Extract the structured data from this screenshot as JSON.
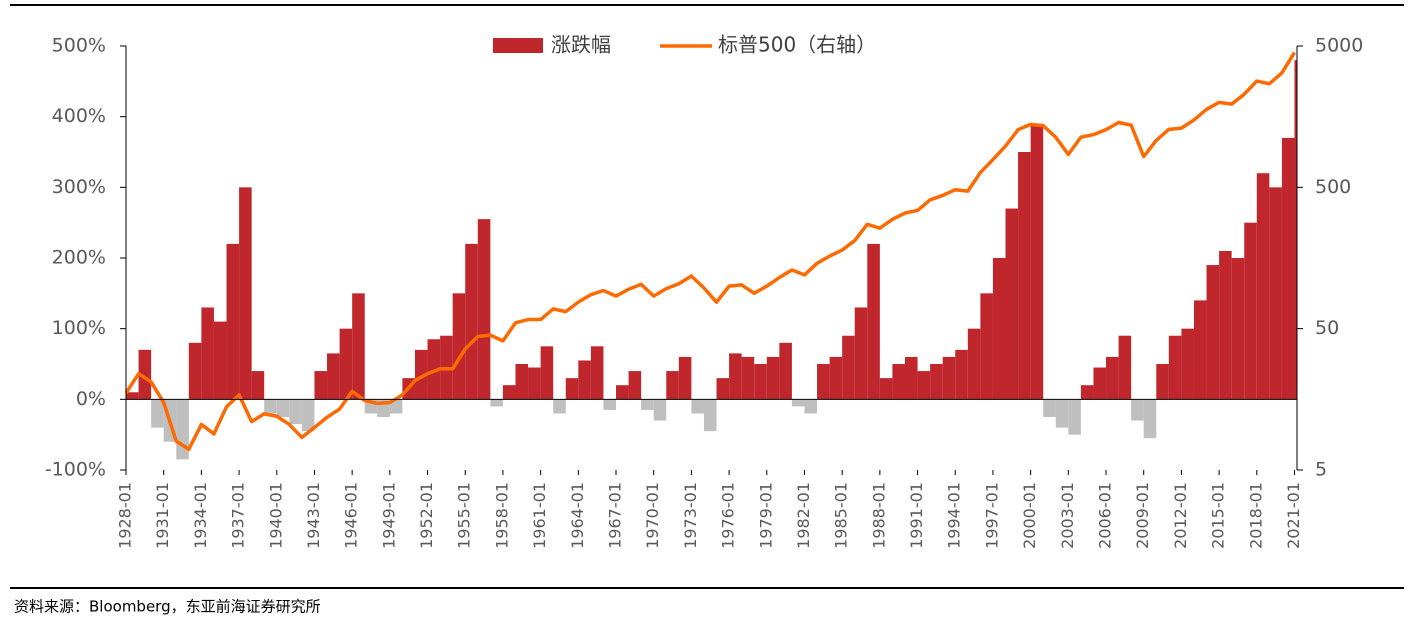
{
  "chart_data": {
    "type": "bar_line",
    "x": [
      1928,
      1929,
      1930,
      1931,
      1932,
      1933,
      1934,
      1935,
      1936,
      1937,
      1938,
      1939,
      1940,
      1941,
      1942,
      1943,
      1944,
      1945,
      1946,
      1947,
      1948,
      1949,
      1950,
      1951,
      1952,
      1953,
      1954,
      1955,
      1956,
      1957,
      1958,
      1959,
      1960,
      1961,
      1962,
      1963,
      1964,
      1965,
      1966,
      1967,
      1968,
      1969,
      1970,
      1971,
      1972,
      1973,
      1974,
      1975,
      1976,
      1977,
      1978,
      1979,
      1980,
      1981,
      1982,
      1983,
      1984,
      1985,
      1986,
      1987,
      1988,
      1989,
      1990,
      1991,
      1992,
      1993,
      1994,
      1995,
      1996,
      1997,
      1998,
      1999,
      2000,
      2001,
      2002,
      2003,
      2004,
      2005,
      2006,
      2007,
      2008,
      2009,
      2010,
      2011,
      2012,
      2013,
      2014,
      2015,
      2016,
      2017,
      2018,
      2019,
      2020,
      2021
    ],
    "series": [
      {
        "name": "涨跌幅",
        "color": "#c0272d",
        "negative_color": "#bfbfbf",
        "axis": "y",
        "values": [
          10,
          70,
          -40,
          -60,
          -85,
          80,
          130,
          110,
          220,
          300,
          40,
          -20,
          -25,
          -35,
          -45,
          40,
          65,
          100,
          150,
          -20,
          -25,
          -20,
          30,
          70,
          85,
          90,
          150,
          220,
          255,
          -10,
          20,
          50,
          45,
          75,
          -20,
          30,
          55,
          75,
          -15,
          20,
          40,
          -15,
          -30,
          40,
          60,
          -20,
          -45,
          30,
          65,
          60,
          50,
          60,
          80,
          -10,
          -20,
          50,
          60,
          90,
          130,
          220,
          30,
          50,
          60,
          40,
          50,
          60,
          70,
          100,
          150,
          200,
          270,
          350,
          390,
          -25,
          -40,
          -50,
          20,
          45,
          60,
          90,
          -30,
          -55,
          50,
          90,
          100,
          140,
          190,
          210,
          200,
          250,
          320,
          300,
          370,
          480
        ]
      },
      {
        "name": "标普500（右轴）",
        "color": "#ff6a00",
        "axis": "y2",
        "values": [
          17.5,
          24,
          21,
          15,
          8,
          7,
          10.5,
          9,
          14,
          17,
          11,
          12.5,
          12,
          10.5,
          8.5,
          10,
          11.8,
          13.5,
          18,
          15.5,
          14.8,
          15,
          17,
          21.5,
          24,
          26,
          26,
          36,
          44,
          45,
          41,
          55,
          58,
          58,
          69,
          66,
          77,
          87,
          93,
          85,
          95,
          103,
          85,
          96,
          104,
          118,
          97,
          77,
          100,
          102,
          89,
          100,
          115,
          130,
          120,
          145,
          163,
          180,
          210,
          274,
          257,
          297,
          329,
          343,
          408,
          438,
          481,
          470,
          636,
          786,
          980,
          1280,
          1394,
          1366,
          1130,
          855,
          1131,
          1181,
          1280,
          1438,
          1378,
          825,
          1073,
          1286,
          1312,
          1498,
          1782,
          1995,
          1940,
          2279,
          2823,
          2704,
          3225,
          4500
        ]
      }
    ],
    "xlim": [
      1928,
      2021.2
    ],
    "xticks": [
      {
        "value": 1928,
        "label": "1928-01"
      },
      {
        "value": 1931,
        "label": "1931-01"
      },
      {
        "value": 1934,
        "label": "1934-01"
      },
      {
        "value": 1937,
        "label": "1937-01"
      },
      {
        "value": 1940,
        "label": "1940-01"
      },
      {
        "value": 1943,
        "label": "1943-01"
      },
      {
        "value": 1946,
        "label": "1946-01"
      },
      {
        "value": 1949,
        "label": "1949-01"
      },
      {
        "value": 1952,
        "label": "1952-01"
      },
      {
        "value": 1955,
        "label": "1955-01"
      },
      {
        "value": 1958,
        "label": "1958-01"
      },
      {
        "value": 1961,
        "label": "1961-01"
      },
      {
        "value": 1964,
        "label": "1964-01"
      },
      {
        "value": 1967,
        "label": "1967-01"
      },
      {
        "value": 1970,
        "label": "1970-01"
      },
      {
        "value": 1973,
        "label": "1973-01"
      },
      {
        "value": 1976,
        "label": "1976-01"
      },
      {
        "value": 1979,
        "label": "1979-01"
      },
      {
        "value": 1982,
        "label": "1982-01"
      },
      {
        "value": 1985,
        "label": "1985-01"
      },
      {
        "value": 1988,
        "label": "1988-01"
      },
      {
        "value": 1991,
        "label": "1991-01"
      },
      {
        "value": 1994,
        "label": "1994-01"
      },
      {
        "value": 1997,
        "label": "1997-01"
      },
      {
        "value": 2000,
        "label": "2000-01"
      },
      {
        "value": 2003,
        "label": "2003-01"
      },
      {
        "value": 2006,
        "label": "2006-01"
      },
      {
        "value": 2009,
        "label": "2009-01"
      },
      {
        "value": 2012,
        "label": "2012-01"
      },
      {
        "value": 2015,
        "label": "2015-01"
      },
      {
        "value": 2018,
        "label": "2018-01"
      },
      {
        "value": 2021,
        "label": "2021-01"
      }
    ],
    "ylim": [
      -100,
      500
    ],
    "yticks": [
      {
        "value": -100,
        "label": "-100%"
      },
      {
        "value": 0,
        "label": "0%"
      },
      {
        "value": 100,
        "label": "100%"
      },
      {
        "value": 200,
        "label": "200%"
      },
      {
        "value": 300,
        "label": "300%"
      },
      {
        "value": 400,
        "label": "400%"
      },
      {
        "value": 500,
        "label": "500%"
      }
    ],
    "y2lim": [
      5,
      5000
    ],
    "y2log": true,
    "y2ticks": [
      5,
      50,
      500,
      5000
    ],
    "legend": "top",
    "source": "资料来源：Bloomberg，东亚前海证券研究所"
  }
}
